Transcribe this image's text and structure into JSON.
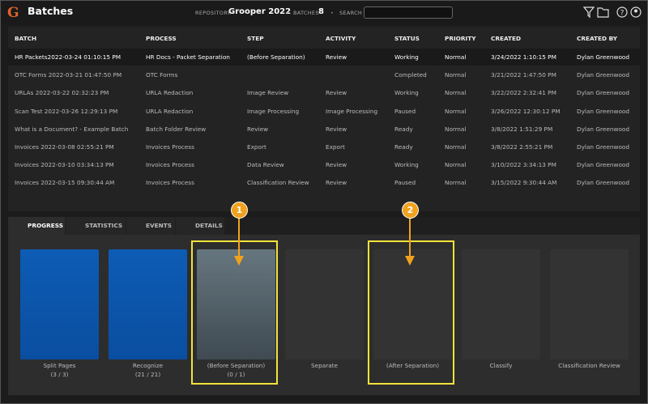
{
  "header": {
    "logo": "G",
    "title": "Batches",
    "repository_label": "REPOSITORY",
    "repository": "Grooper 2022",
    "batches_label": "BATCHES",
    "batches_count": "8",
    "search_label": "SEARCH"
  },
  "table": {
    "columns": [
      "BATCH",
      "PROCESS",
      "STEP",
      "ACTIVITY",
      "STATUS",
      "PRIORITY",
      "CREATED",
      "CREATED BY"
    ],
    "rows": [
      [
        "HR Packets2022-03-24 01:10:15 PM",
        "HR Docs - Packet Separation",
        "(Before Separation)",
        "Review",
        "Working",
        "Normal",
        "3/24/2022 1:10:15 PM",
        "Dylan Greenwood"
      ],
      [
        "OTC Forms 2022-03-21 01:47:50 PM",
        "OTC Forms",
        null,
        null,
        "Completed",
        "Normal",
        "3/21/2022 1:47:50 PM",
        "Dylan Greenwood"
      ],
      [
        "URLAs 2022-03-22 02:32:23 PM",
        "URLA Redaction",
        "Image Review",
        "Review",
        "Working",
        "Normal",
        "3/22/2022 2:32:41 PM",
        "Dylan Greenwood"
      ],
      [
        "Scan Test 2022-03-26 12:29:13 PM",
        "URLA Redaction",
        "Image Processing",
        "Image Processing",
        "Paused",
        "Normal",
        "3/26/2022 12:30:12 PM",
        "Dylan Greenwood"
      ],
      [
        "What is a Document? - Example Batch",
        "Batch Folder Review",
        "Review",
        "Review",
        "Ready",
        "Normal",
        "3/8/2022 1:51:29 PM",
        "Dylan Greenwood"
      ],
      [
        "Invoices 2022-03-08 02:55:21 PM",
        "Invoices Process",
        "Export",
        "Export",
        "Ready",
        "Normal",
        "3/8/2022 2:55:21 PM",
        "Dylan Greenwood"
      ],
      [
        "Invoices 2022-03-10 03:34:13 PM",
        "Invoices Process",
        "Data Review",
        "Review",
        "Working",
        "Normal",
        "3/10/2022 3:34:13 PM",
        "Dylan Greenwood"
      ],
      [
        "Invoices 2022-03-15 09:30:44 AM",
        "Invoices Process",
        "Classification Review",
        "Review",
        "Paused",
        "Normal",
        "3/15/2022 9:30:44 AM",
        "Dylan Greenwood"
      ]
    ]
  },
  "tabs": [
    "PROGRESS",
    "STATISTICS",
    "EVENTS",
    "DETAILS"
  ],
  "steps": [
    {
      "name": "Split Pages",
      "progress": "(3 / 3)"
    },
    {
      "name": "Recognize",
      "progress": "(21 / 21)"
    },
    {
      "name": "(Before Separation)",
      "progress": "(0 / 1)"
    },
    {
      "name": "Separate"
    },
    {
      "name": "(After Separation)"
    },
    {
      "name": "Classify"
    },
    {
      "name": "Classification Review"
    }
  ],
  "callouts": [
    "1",
    "2"
  ]
}
